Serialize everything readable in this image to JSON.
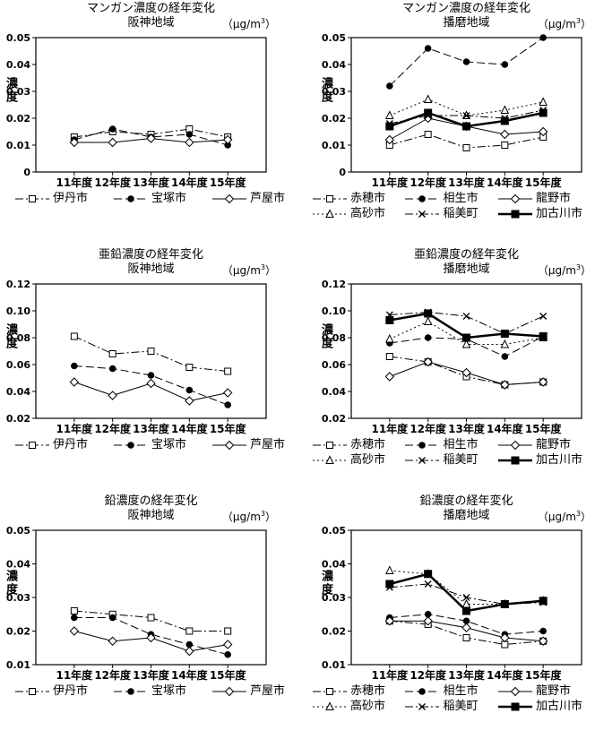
{
  "colors": {
    "line": "#000000",
    "background": "#ffffff"
  },
  "unit_label": {
    "open": "（",
    "base": "μg/m",
    "sup": "3",
    "close": "）"
  },
  "x_axis_categories": [
    "11年度",
    "12年度",
    "13年度",
    "14年度",
    "15年度"
  ],
  "chart_data": [
    {
      "type": "line",
      "title": "マンガン濃度の経年変化",
      "subtitle": "阪神地域",
      "ylabel": "濃度",
      "unit": "μg/m3",
      "grid": false,
      "legend_position": "bottom",
      "ylim": [
        0,
        0.05
      ],
      "yticks": [
        "0",
        "0.01",
        "0.02",
        "0.03",
        "0.04",
        "0.05"
      ],
      "categories": [
        "11年度",
        "12年度",
        "13年度",
        "14年度",
        "15年度"
      ],
      "series": [
        {
          "name": "伊丹市",
          "marker": "square-open",
          "line": "dashdot",
          "width": 1,
          "values": [
            0.013,
            0.015,
            0.014,
            0.016,
            0.013
          ]
        },
        {
          "name": "宝塚市",
          "marker": "circle-filled",
          "line": "dash",
          "width": 1,
          "values": [
            0.012,
            0.016,
            0.013,
            0.014,
            0.01
          ]
        },
        {
          "name": "芦屋市",
          "marker": "diamond-open",
          "line": "solid",
          "width": 1,
          "values": [
            0.011,
            0.011,
            0.0125,
            0.011,
            0.012
          ]
        }
      ]
    },
    {
      "type": "line",
      "title": "マンガン濃度の経年変化",
      "subtitle": "播磨地域",
      "ylabel": "濃度",
      "unit": "μg/m3",
      "grid": false,
      "legend_position": "bottom",
      "ylim": [
        0,
        0.05
      ],
      "yticks": [
        "0",
        "0.01",
        "0.02",
        "0.03",
        "0.04",
        "0.05"
      ],
      "categories": [
        "11年度",
        "12年度",
        "13年度",
        "14年度",
        "15年度"
      ],
      "series": [
        {
          "name": "赤穂市",
          "marker": "square-open",
          "line": "dashdot",
          "width": 1,
          "values": [
            0.01,
            0.014,
            0.009,
            0.01,
            0.013
          ]
        },
        {
          "name": "相生市",
          "marker": "circle-filled",
          "line": "dash",
          "width": 1,
          "values": [
            0.032,
            0.046,
            0.041,
            0.04,
            0.05
          ]
        },
        {
          "name": "龍野市",
          "marker": "diamond-open",
          "line": "solid",
          "width": 1,
          "values": [
            0.012,
            0.02,
            0.017,
            0.014,
            0.015
          ]
        },
        {
          "name": "高砂市",
          "marker": "triangle-open",
          "line": "dot",
          "width": 1,
          "values": [
            0.021,
            0.027,
            0.021,
            0.023,
            0.026
          ]
        },
        {
          "name": "稲美町",
          "marker": "x-mark",
          "line": "dashdot",
          "width": 1,
          "values": [
            0.018,
            0.021,
            0.021,
            0.02,
            0.023
          ]
        },
        {
          "name": "加古川市",
          "marker": "square-filled",
          "line": "solid",
          "width": 2.5,
          "values": [
            0.017,
            0.022,
            0.017,
            0.019,
            0.022
          ]
        }
      ]
    },
    {
      "type": "line",
      "title": "亜鉛濃度の経年変化",
      "subtitle": "阪神地域",
      "ylabel": "濃度",
      "unit": "μg/m3",
      "grid": false,
      "legend_position": "bottom",
      "ylim": [
        0.02,
        0.12
      ],
      "yticks": [
        "0.02",
        "0.04",
        "0.06",
        "0.08",
        "0.10",
        "0.12"
      ],
      "categories": [
        "11年度",
        "12年度",
        "13年度",
        "14年度",
        "15年度"
      ],
      "series": [
        {
          "name": "伊丹市",
          "marker": "square-open",
          "line": "dashdot",
          "width": 1,
          "values": [
            0.081,
            0.068,
            0.07,
            0.058,
            0.055
          ]
        },
        {
          "name": "宝塚市",
          "marker": "circle-filled",
          "line": "dash",
          "width": 1,
          "values": [
            0.059,
            0.057,
            0.052,
            0.041,
            0.03
          ]
        },
        {
          "name": "芦屋市",
          "marker": "diamond-open",
          "line": "solid",
          "width": 1,
          "values": [
            0.047,
            0.037,
            0.046,
            0.033,
            0.039
          ]
        }
      ]
    },
    {
      "type": "line",
      "title": "亜鉛濃度の経年変化",
      "subtitle": "播磨地域",
      "ylabel": "濃度",
      "unit": "μg/m3",
      "grid": false,
      "legend_position": "bottom",
      "ylim": [
        0.02,
        0.12
      ],
      "yticks": [
        "0.02",
        "0.04",
        "0.06",
        "0.08",
        "0.10",
        "0.12"
      ],
      "categories": [
        "11年度",
        "12年度",
        "13年度",
        "14年度",
        "15年度"
      ],
      "series": [
        {
          "name": "赤穂市",
          "marker": "square-open",
          "line": "dashdot",
          "width": 1,
          "values": [
            0.066,
            0.062,
            0.051,
            0.045,
            0.047
          ]
        },
        {
          "name": "相生市",
          "marker": "circle-filled",
          "line": "dash",
          "width": 1,
          "values": [
            0.076,
            0.08,
            0.079,
            0.066,
            0.081
          ]
        },
        {
          "name": "龍野市",
          "marker": "diamond-open",
          "line": "solid",
          "width": 1,
          "values": [
            0.051,
            0.062,
            0.054,
            0.045,
            0.047
          ]
        },
        {
          "name": "高砂市",
          "marker": "triangle-open",
          "line": "dot",
          "width": 1,
          "values": [
            0.079,
            0.092,
            0.075,
            0.075,
            0.08
          ]
        },
        {
          "name": "稲美町",
          "marker": "x-mark",
          "line": "dashdot",
          "width": 1,
          "values": [
            0.097,
            0.099,
            0.096,
            0.083,
            0.096
          ]
        },
        {
          "name": "加古川市",
          "marker": "square-filled",
          "line": "solid",
          "width": 2.5,
          "values": [
            0.093,
            0.098,
            0.08,
            0.083,
            0.081
          ]
        }
      ]
    },
    {
      "type": "line",
      "title": "鉛濃度の経年変化",
      "subtitle": "阪神地域",
      "ylabel": "濃度",
      "unit": "μg/m3",
      "grid": false,
      "legend_position": "bottom",
      "ylim": [
        0.01,
        0.05
      ],
      "yticks": [
        "0.01",
        "0.02",
        "0.03",
        "0.04",
        "0.05"
      ],
      "categories": [
        "11年度",
        "12年度",
        "13年度",
        "14年度",
        "15年度"
      ],
      "series": [
        {
          "name": "伊丹市",
          "marker": "square-open",
          "line": "dashdot",
          "width": 1,
          "values": [
            0.026,
            0.025,
            0.024,
            0.02,
            0.02
          ]
        },
        {
          "name": "宝塚市",
          "marker": "circle-filled",
          "line": "dash",
          "width": 1,
          "values": [
            0.024,
            0.024,
            0.019,
            0.016,
            0.013
          ]
        },
        {
          "name": "芦屋市",
          "marker": "diamond-open",
          "line": "solid",
          "width": 1,
          "values": [
            0.02,
            0.017,
            0.018,
            0.014,
            0.016
          ]
        }
      ]
    },
    {
      "type": "line",
      "title": "鉛濃度の経年変化",
      "subtitle": "播磨地域",
      "ylabel": "濃度",
      "unit": "μg/m3",
      "grid": false,
      "legend_position": "bottom",
      "ylim": [
        0.01,
        0.05
      ],
      "yticks": [
        "0.01",
        "0.02",
        "0.03",
        "0.04",
        "0.05"
      ],
      "categories": [
        "11年度",
        "12年度",
        "13年度",
        "14年度",
        "15年度"
      ],
      "series": [
        {
          "name": "赤穂市",
          "marker": "square-open",
          "line": "dashdot",
          "width": 1,
          "values": [
            0.023,
            0.022,
            0.018,
            0.016,
            0.017
          ]
        },
        {
          "name": "相生市",
          "marker": "circle-filled",
          "line": "dash",
          "width": 1,
          "values": [
            0.024,
            0.025,
            0.023,
            0.019,
            0.02
          ]
        },
        {
          "name": "龍野市",
          "marker": "diamond-open",
          "line": "solid",
          "width": 1,
          "values": [
            0.023,
            0.023,
            0.021,
            0.018,
            0.017
          ]
        },
        {
          "name": "高砂市",
          "marker": "triangle-open",
          "line": "dot",
          "width": 1,
          "values": [
            0.038,
            0.037,
            0.028,
            0.028,
            0.029
          ]
        },
        {
          "name": "稲美町",
          "marker": "x-mark",
          "line": "dashdot",
          "width": 1,
          "values": [
            0.033,
            0.034,
            0.03,
            0.028,
            0.0285
          ]
        },
        {
          "name": "加古川市",
          "marker": "square-filled",
          "line": "solid",
          "width": 2.5,
          "values": [
            0.034,
            0.037,
            0.026,
            0.028,
            0.029
          ]
        }
      ]
    }
  ]
}
